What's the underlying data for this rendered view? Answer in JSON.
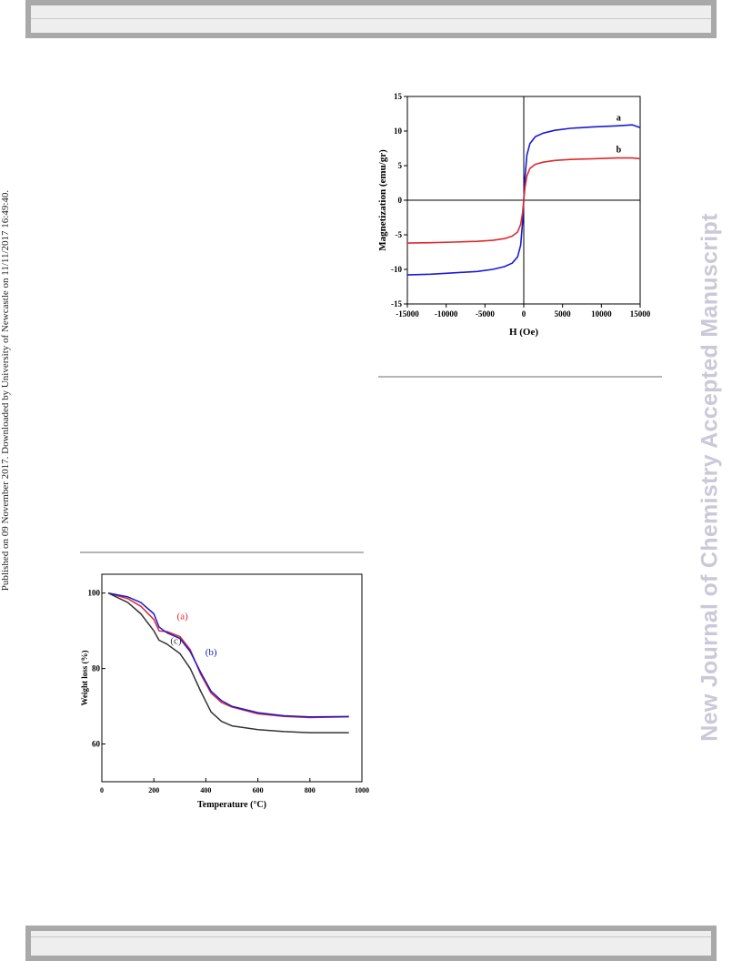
{
  "side_text": "Published on 09 November 2017. Downloaded by University of Newcastle on 11/11/2017 16:49:40.",
  "watermark": "New Journal of Chemistry Accepted Manuscript",
  "chart_data": [
    {
      "type": "line",
      "xlabel": "H (Oe)",
      "ylabel": "Magnetization (emu/gr)",
      "xlim": [
        -15000,
        15000
      ],
      "ylim": [
        -15,
        15
      ],
      "xticks": [
        -15000,
        -10000,
        -5000,
        0,
        5000,
        10000,
        15000
      ],
      "yticks": [
        -15,
        -10,
        -5,
        0,
        5,
        10,
        15
      ],
      "grid": false,
      "series": [
        {
          "name": "a",
          "color": "#1a1ad6",
          "x": [
            -15000,
            -12000,
            -9000,
            -6000,
            -4000,
            -2500,
            -1500,
            -800,
            -400,
            -150,
            0,
            150,
            400,
            800,
            1500,
            2500,
            4000,
            6000,
            9000,
            12000,
            14000,
            15000
          ],
          "y": [
            -10.8,
            -10.7,
            -10.5,
            -10.3,
            -10.0,
            -9.6,
            -9.1,
            -8.2,
            -6.5,
            -3.2,
            0,
            3.2,
            6.5,
            8.2,
            9.2,
            9.7,
            10.1,
            10.4,
            10.6,
            10.75,
            10.9,
            10.5
          ]
        },
        {
          "name": "b",
          "color": "#e0282d",
          "x": [
            -15000,
            -12000,
            -9000,
            -6000,
            -4000,
            -2500,
            -1500,
            -800,
            -400,
            -150,
            0,
            150,
            400,
            800,
            1500,
            2500,
            4000,
            6000,
            9000,
            12000,
            14000,
            15000
          ],
          "y": [
            -6.2,
            -6.15,
            -6.05,
            -5.95,
            -5.8,
            -5.55,
            -5.2,
            -4.6,
            -3.5,
            -1.8,
            0,
            1.8,
            3.5,
            4.6,
            5.2,
            5.5,
            5.75,
            5.9,
            6.0,
            6.1,
            6.1,
            6.0
          ]
        }
      ]
    },
    {
      "type": "line",
      "xlabel": "Temperature (°C)",
      "ylabel": "Weight loss (%)",
      "xlim": [
        0,
        1000
      ],
      "ylim": [
        50,
        105
      ],
      "xticks": [
        0,
        200,
        400,
        600,
        800,
        1000
      ],
      "yticks": [
        60,
        80,
        100
      ],
      "grid": false,
      "series": [
        {
          "name": "(a)",
          "color": "#e0282d",
          "x": [
            25,
            100,
            150,
            200,
            220,
            250,
            300,
            340,
            380,
            420,
            460,
            500,
            600,
            700,
            800,
            950
          ],
          "y": [
            100,
            98.5,
            96.5,
            93.0,
            90.0,
            89.8,
            88.5,
            85.0,
            78.5,
            73.5,
            71.0,
            69.8,
            68.0,
            67.3,
            67.0,
            67.2
          ]
        },
        {
          "name": "(b)",
          "color": "#1a1ad6",
          "x": [
            25,
            100,
            150,
            200,
            220,
            250,
            300,
            340,
            380,
            420,
            460,
            500,
            600,
            700,
            800,
            950
          ],
          "y": [
            100,
            99.0,
            97.5,
            94.5,
            91.0,
            89.5,
            88.0,
            84.5,
            79.0,
            74.0,
            71.5,
            70.0,
            68.3,
            67.5,
            67.2,
            67.3
          ]
        },
        {
          "name": "(c)",
          "color": "#333333",
          "x": [
            25,
            100,
            150,
            200,
            220,
            250,
            300,
            340,
            380,
            420,
            460,
            500,
            600,
            700,
            800,
            950
          ],
          "y": [
            100,
            97.5,
            94.5,
            90.0,
            87.5,
            86.5,
            84.0,
            80.0,
            74.0,
            68.5,
            66.0,
            64.8,
            63.8,
            63.3,
            63.0,
            63.0
          ]
        }
      ]
    }
  ]
}
